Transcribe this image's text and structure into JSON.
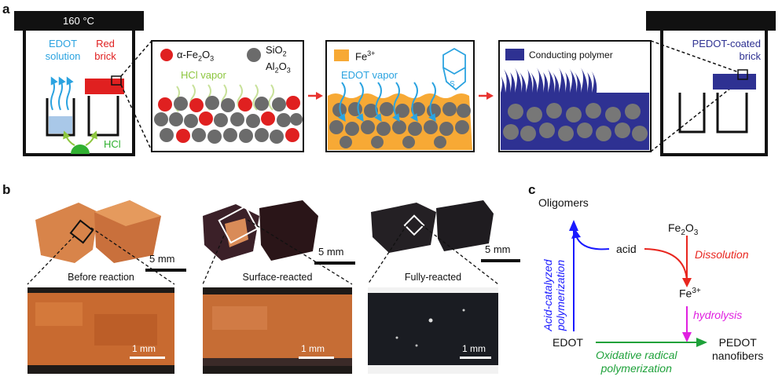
{
  "panel_a": {
    "letter": "a",
    "oven_temp": "160 °C",
    "edot_solution_line1": "EDOT",
    "edot_solution_line2": "solution",
    "red_brick_line1": "Red",
    "red_brick_line2": "brick",
    "hcl": "HCl",
    "legend_fe2o3": "α-Fe2O3",
    "legend_sio2_line1": "SiO2",
    "legend_sio2_line2": "Al2O3",
    "hcl_vapor": "HCl vapor",
    "legend_fe3": "Fe3+",
    "edot_vapor": "EDOT vapor",
    "legend_polymer": "Conducting polymer",
    "pedot_brick_line1": "PEDOT-coated",
    "pedot_brick_line2": "brick",
    "colors": {
      "hematite_red": "#e02020",
      "oxide_gray": "#6b6b6b",
      "fe3_orange": "#f7a935",
      "vapor_blue": "#2ba3e0",
      "hcl_green": "#8dc63f",
      "polymer_navy": "#2e3192",
      "arrow_red": "#e8332f"
    }
  },
  "panel_b": {
    "letter": "b",
    "scale_5mm": "5 mm",
    "scale_1mm": "1 mm",
    "labels": [
      "Before reaction",
      "Surface-reacted",
      "Fully-reacted"
    ]
  },
  "panel_c": {
    "letter": "c",
    "oligomers": "Oligomers",
    "fe2o3": "Fe2O3",
    "acid": "acid",
    "dissolution": "Dissolution",
    "acid_catalyzed_line1": "Acid-catalyzed",
    "acid_catalyzed_line2": "polymerization",
    "fe3": "Fe3+",
    "hydrolysis": "hydrolysis",
    "edot": "EDOT",
    "pedot_line1": "PEDOT",
    "pedot_line2": "nanofibers",
    "oxidative_line1": "Oxidative radical",
    "oxidative_line2": "polymerization",
    "colors": {
      "blue": "#1a1aff",
      "red": "#e8261f",
      "magenta": "#e020e0",
      "green": "#1ea13a"
    }
  }
}
